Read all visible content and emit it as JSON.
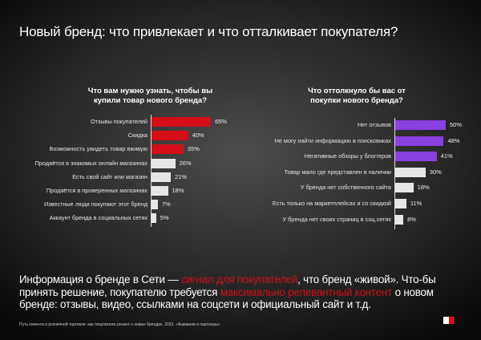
{
  "title": "Новый бренд: что привлекает и что отталкивает покупателя?",
  "chart_data": [
    {
      "type": "bar",
      "orientation": "horizontal",
      "title": "Что вам нужно узнать, чтобы вы купили  товар нового бренда?",
      "categories": [
        "Отзывы покупателей",
        "Скидка",
        "Возможность увидеть товар вживую",
        "Продаётся в знакомых онлайн магазинах",
        "Есть свой сайт или магазин",
        "Продаётся в проверенных магазинах",
        "Известные люди покупают этот бренд",
        "Аккаунт бренда в социальных сетях"
      ],
      "values": [
        65,
        40,
        35,
        26,
        21,
        18,
        7,
        5
      ],
      "value_labels": [
        "65%",
        "40%",
        "35%",
        "26%",
        "21%",
        "18%",
        "7%",
        "5%"
      ],
      "colors": [
        "#d40d18",
        "#d40d18",
        "#d40d18",
        "#e6e6e6",
        "#e6e6e6",
        "#e6e6e6",
        "#e6e6e6",
        "#e6e6e6"
      ],
      "unit": "%"
    },
    {
      "type": "bar",
      "orientation": "horizontal",
      "title": "Что оттолкнуло бы вас от покупки нового бренда?",
      "categories": [
        "Нет отзывов",
        "Не могу найти информацию в поисковиках",
        "Негативные обзоры у блоггеров",
        "Товар мало где представлен в наличии",
        "У бренда нет собственного сайта",
        "Есть только на маркетплейсах и со скидкой",
        "У бренда нет своих страниц в соц.сетях"
      ],
      "values": [
        50,
        48,
        41,
        30,
        18,
        11,
        8
      ],
      "value_labels": [
        "50%",
        "48%",
        "41%",
        "30%",
        "18%",
        "11%",
        "8%"
      ],
      "colors": [
        "#8a3fe0",
        "#8a3fe0",
        "#8a3fe0",
        "#e6e6e6",
        "#e6e6e6",
        "#e6e6e6",
        "#e6e6e6"
      ],
      "unit": "%"
    }
  ],
  "note": {
    "p1": "Информация о бренде в Сети — ",
    "h1": "сигнал для покупателей",
    "p2": ", что бренд «живой». Что-бы принять решение, покупателю требуется ",
    "h2": "максимально релевантный контент",
    "p3": " о новом бренде: отзывы, видео, ссылками на соцсети и официальный сайт и т.д."
  },
  "source": "Путь клиента в розничной торговле: как покупатели узнают о новых брендах. 2023. «Ашманов и партнеры»"
}
